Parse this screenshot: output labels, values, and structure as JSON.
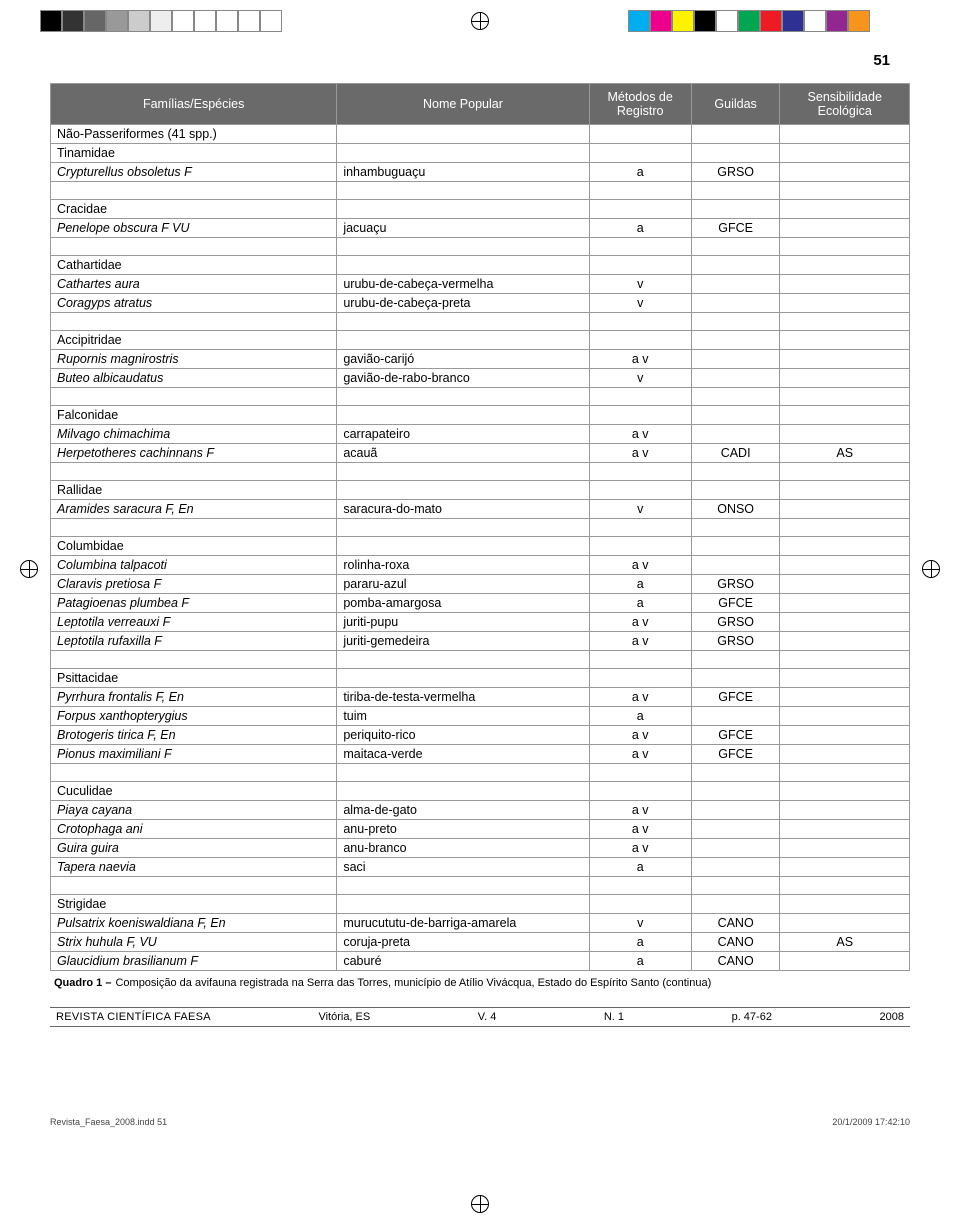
{
  "page_number": "51",
  "reg_left_colors": [
    "#000000",
    "#333333",
    "#666666",
    "#999999",
    "#cccccc",
    "#eeeeee",
    "#ffffff",
    "#ffffff",
    "#ffffff",
    "#ffffff",
    "#ffffff"
  ],
  "reg_right_colors": [
    "#00aeef",
    "#ec008c",
    "#fff200",
    "#000000",
    "#ffffff",
    "#00a651",
    "#ed1c24",
    "#2e3192",
    "#ffffff",
    "#92278f",
    "#f7941d"
  ],
  "headers": {
    "col1": "Famílias/Espécies",
    "col2": "Nome Popular",
    "col3": "Métodos de Registro",
    "col4": "Guildas",
    "col5": "Sensibilidade Ecológica"
  },
  "rows": [
    {
      "c1": "Não-Passeriformes (41 spp.)",
      "c2": "",
      "c3": "",
      "c4": "",
      "c5": "",
      "i": false
    },
    {
      "c1": "Tinamidae",
      "c2": "",
      "c3": "",
      "c4": "",
      "c5": "",
      "i": false
    },
    {
      "c1": "Crypturellus obsoletus F",
      "c2": "inhambuguaçu",
      "c3": "a",
      "c4": "GRSO",
      "c5": "",
      "i": true
    },
    {
      "spacer": true
    },
    {
      "c1": "Cracidae",
      "c2": "",
      "c3": "",
      "c4": "",
      "c5": "",
      "i": false
    },
    {
      "c1": "Penelope obscura F VU",
      "c2": "jacuaçu",
      "c3": "a",
      "c4": "GFCE",
      "c5": "",
      "i": true
    },
    {
      "spacer": true
    },
    {
      "c1": "Cathartidae",
      "c2": "",
      "c3": "",
      "c4": "",
      "c5": "",
      "i": false
    },
    {
      "c1": "Cathartes aura",
      "c2": "urubu-de-cabeça-vermelha",
      "c3": "v",
      "c4": "",
      "c5": "",
      "i": true
    },
    {
      "c1": "Coragyps atratus",
      "c2": "urubu-de-cabeça-preta",
      "c3": "v",
      "c4": "",
      "c5": "",
      "i": true
    },
    {
      "spacer": true
    },
    {
      "c1": "Accipitridae",
      "c2": "",
      "c3": "",
      "c4": "",
      "c5": "",
      "i": false
    },
    {
      "c1": "Rupornis magnirostris",
      "c2": "gavião-carijó",
      "c3": "a v",
      "c4": "",
      "c5": "",
      "i": true
    },
    {
      "c1": "Buteo albicaudatus",
      "c2": "gavião-de-rabo-branco",
      "c3": "v",
      "c4": "",
      "c5": "",
      "i": true
    },
    {
      "spacer": true
    },
    {
      "c1": "Falconidae",
      "c2": "",
      "c3": "",
      "c4": "",
      "c5": "",
      "i": false
    },
    {
      "c1": "Milvago chimachima",
      "c2": "carrapateiro",
      "c3": "a v",
      "c4": "",
      "c5": "",
      "i": true
    },
    {
      "c1": "Herpetotheres cachinnans F",
      "c2": "acauã",
      "c3": "a v",
      "c4": "CADI",
      "c5": "AS",
      "i": true
    },
    {
      "spacer": true
    },
    {
      "c1": "Rallidae",
      "c2": "",
      "c3": "",
      "c4": "",
      "c5": "",
      "i": false
    },
    {
      "c1": "Aramides saracura F, En",
      "c2": "saracura-do-mato",
      "c3": "v",
      "c4": "ONSO",
      "c5": "",
      "i": true
    },
    {
      "spacer": true
    },
    {
      "c1": "Columbidae",
      "c2": "",
      "c3": "",
      "c4": "",
      "c5": "",
      "i": false
    },
    {
      "c1": "Columbina talpacoti",
      "c2": "rolinha-roxa",
      "c3": "a v",
      "c4": "",
      "c5": "",
      "i": true
    },
    {
      "c1": "Claravis pretiosa F",
      "c2": "pararu-azul",
      "c3": "a",
      "c4": "GRSO",
      "c5": "",
      "i": true
    },
    {
      "c1": "Patagioenas plumbea F",
      "c2": "pomba-amargosa",
      "c3": "a",
      "c4": "GFCE",
      "c5": "",
      "i": true
    },
    {
      "c1": "Leptotila verreauxi F",
      "c2": "juriti-pupu",
      "c3": "a v",
      "c4": "GRSO",
      "c5": "",
      "i": true
    },
    {
      "c1": "Leptotila rufaxilla F",
      "c2": "juriti-gemedeira",
      "c3": "a v",
      "c4": "GRSO",
      "c5": "",
      "i": true
    },
    {
      "spacer": true
    },
    {
      "c1": "Psittacidae",
      "c2": "",
      "c3": "",
      "c4": "",
      "c5": "",
      "i": false
    },
    {
      "c1": "Pyrrhura frontalis F, En",
      "c2": "tiriba-de-testa-vermelha",
      "c3": "a v",
      "c4": "GFCE",
      "c5": "",
      "i": true
    },
    {
      "c1": "Forpus xanthopterygius",
      "c2": "tuim",
      "c3": "a",
      "c4": "",
      "c5": "",
      "i": true
    },
    {
      "c1": "Brotogeris tirica F, En",
      "c2": "periquito-rico",
      "c3": "a v",
      "c4": "GFCE",
      "c5": "",
      "i": true
    },
    {
      "c1": "Pionus maximiliani F",
      "c2": "maitaca-verde",
      "c3": "a v",
      "c4": "GFCE",
      "c5": "",
      "i": true
    },
    {
      "spacer": true
    },
    {
      "c1": "Cuculidae",
      "c2": "",
      "c3": "",
      "c4": "",
      "c5": "",
      "i": false
    },
    {
      "c1": "Piaya cayana",
      "c2": "alma-de-gato",
      "c3": "a v",
      "c4": "",
      "c5": "",
      "i": true
    },
    {
      "c1": "Crotophaga ani",
      "c2": "anu-preto",
      "c3": "a v",
      "c4": "",
      "c5": "",
      "i": true
    },
    {
      "c1": "Guira guira",
      "c2": "anu-branco",
      "c3": "a v",
      "c4": "",
      "c5": "",
      "i": true
    },
    {
      "c1": "Tapera naevia",
      "c2": "saci",
      "c3": "a",
      "c4": "",
      "c5": "",
      "i": true
    },
    {
      "spacer": true
    },
    {
      "c1": "Strigidae",
      "c2": "",
      "c3": "",
      "c4": "",
      "c5": "",
      "i": false
    },
    {
      "c1": "Pulsatrix koeniswaldiana F, En",
      "c2": "murucututu-de-barriga-amarela",
      "c3": "v",
      "c4": "CANO",
      "c5": "",
      "i": true
    },
    {
      "c1": "Strix huhula F, VU",
      "c2": "coruja-preta",
      "c3": "a",
      "c4": "CANO",
      "c5": "AS",
      "i": true
    },
    {
      "c1": "Glaucidium brasilianum F",
      "c2": "caburé",
      "c3": "a",
      "c4": "CANO",
      "c5": "",
      "i": true
    }
  ],
  "caption_label": "Quadro 1 –",
  "caption_text": "Composição da avifauna registrada na Serra das Torres, município de Atílio Vivácqua, Estado do Espírito Santo (continua)",
  "footer": {
    "journal": "REVISTA CIENTÍFICA FAESA",
    "local": "Vitória, ES",
    "vol": "V. 4",
    "num": "N. 1",
    "pages": "p. 47-62",
    "year": "2008"
  },
  "indd": {
    "file": "Revista_Faesa_2008.indd   51",
    "ts": "20/1/2009   17:42:10"
  }
}
